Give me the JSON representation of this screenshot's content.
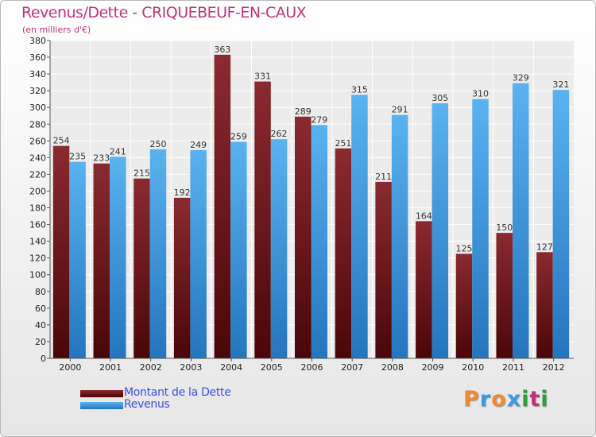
{
  "chart_data": {
    "type": "bar",
    "title": "Revenus/Dette - CRIQUEBEUF-EN-CAUX",
    "subtitle": "(en milliers d'€)",
    "categories": [
      "2000",
      "2001",
      "2002",
      "2003",
      "2004",
      "2005",
      "2006",
      "2007",
      "2008",
      "2009",
      "2010",
      "2011",
      "2012"
    ],
    "series": [
      {
        "name": "Montant de la Dette",
        "color": "#7a1a1d",
        "values": [
          254,
          233,
          215,
          192,
          363,
          331,
          289,
          251,
          211,
          164,
          125,
          150,
          127
        ]
      },
      {
        "name": "Revenus",
        "color": "#3d9ae6",
        "values": [
          235,
          241,
          250,
          249,
          259,
          262,
          279,
          315,
          291,
          305,
          310,
          329,
          321
        ]
      }
    ],
    "ylim": [
      0,
      380
    ],
    "ytick_step": 20,
    "grid": true,
    "legend": "bottom-left"
  },
  "logo": {
    "text": "Proxiti",
    "colors": [
      "#ef8a2e",
      "#3d9ae6",
      "#ef8a2e",
      "#3d9ae6",
      "#2e9e3e",
      "#c0337a",
      "#2e9e3e"
    ]
  }
}
